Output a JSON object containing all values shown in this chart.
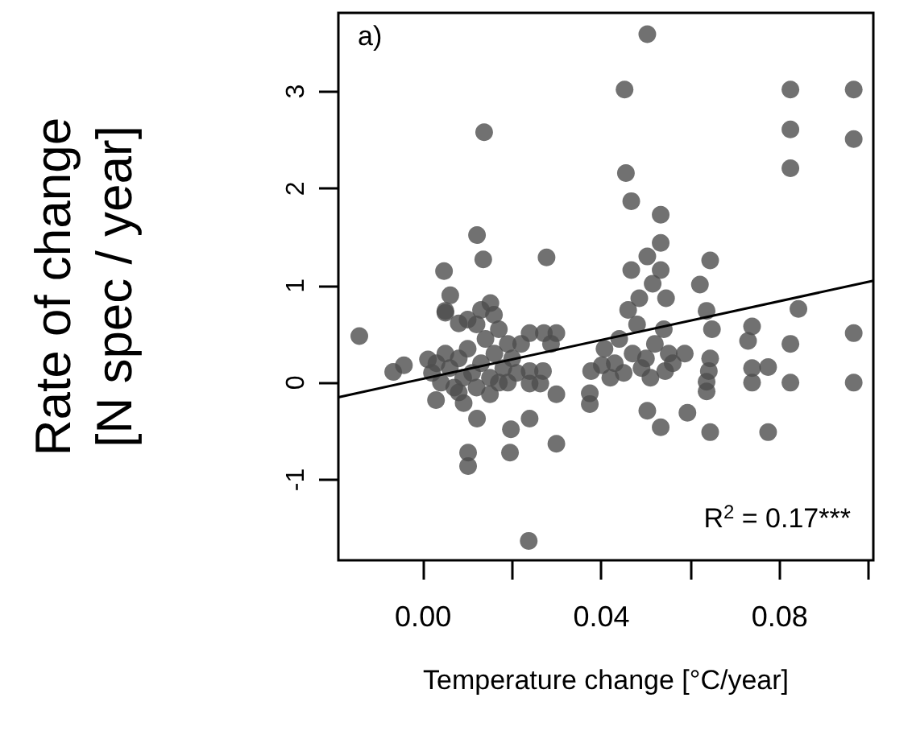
{
  "chart_data": {
    "type": "scatter",
    "xlabel": "Temperature change [°C/year]",
    "ylabel": "Rate of change\n[N spec / year]",
    "annotations": [
      "a)",
      "R$^{2}$ = 0.17***"
    ],
    "xlim": [
      -0.019,
      0.101
    ],
    "ylim": [
      -1.83,
      3.81
    ],
    "xticks": [
      {
        "value": 0,
        "label": "0.00"
      },
      {
        "value": 0.02,
        "label": null
      },
      {
        "value": 0.04,
        "label": "0.04"
      },
      {
        "value": 0.06,
        "label": null
      },
      {
        "value": 0.08,
        "label": "0.08"
      },
      {
        "value": 0.1,
        "label": null
      }
    ],
    "yticks": [
      -1,
      0,
      1,
      2,
      3
    ],
    "grid": false,
    "marker": "circle",
    "series": [
      {
        "color": "#4d4d4d",
        "x": [
          0.0137,
          0.0121,
          0.0135,
          0.0277,
          0.0047,
          0.0061,
          0.005,
          0.0503,
          0.0452,
          0.0824,
          0.0966,
          0.0824,
          0.0966,
          0.0824,
          0.0455,
          0.0467,
          0.0533,
          0.0533,
          0.0503,
          0.0644,
          0.0467,
          0.0533,
          0.0621,
          0.0515,
          0.0485,
          0.0545,
          0.0636,
          0.0842,
          0.0738,
          0.0648,
          0.0729,
          0.0824,
          0.0966,
          0.0774,
          0.0738,
          0.0644,
          0.0641,
          0.0636,
          0.0636,
          0.0738,
          0.0824,
          0.0966,
          0.0587,
          0.0551,
          0.0543,
          0.0503,
          0.0533,
          0.0593,
          0.0644,
          0.0774,
          0.043,
          0.045,
          0.047,
          0.049,
          0.051,
          0.052,
          0.048,
          0.046,
          0.044,
          0.05,
          0.042,
          0.054,
          0.056,
          -0.0143,
          0.005,
          0.008,
          0.0151,
          0.0159,
          0.0239,
          0.0271,
          0.0299,
          0.0287,
          -0.0067,
          -0.0043,
          0.0011,
          0.0029,
          0.0091,
          0.0121,
          0.0197,
          0.0239,
          0.0299,
          0.0299,
          0.0195,
          0.0101,
          0.0101,
          0.0237,
          0.0377,
          0.0374,
          0.0374,
          0.0239,
          0.0269,
          0.0239,
          0.0263,
          0.0407,
          0.0401,
          0.002,
          0.004,
          0.006,
          0.007,
          0.008,
          0.009,
          0.01,
          0.011,
          0.012,
          0.013,
          0.014,
          0.015,
          0.016,
          0.017,
          0.018,
          0.019,
          0.02,
          0.021,
          0.022,
          0.012,
          0.01,
          0.008,
          0.005,
          0.003,
          0.015,
          0.017,
          0.019,
          0.013
        ],
        "values": [
          2.58,
          1.52,
          1.27,
          1.29,
          1.15,
          0.9,
          0.74,
          3.59,
          3.02,
          3.02,
          3.02,
          2.61,
          2.51,
          2.21,
          2.16,
          1.87,
          1.73,
          1.44,
          1.3,
          1.26,
          1.16,
          1.16,
          1.01,
          1.02,
          0.87,
          0.87,
          0.74,
          0.76,
          0.58,
          0.55,
          0.43,
          0.4,
          0.51,
          0.16,
          0.15,
          0.25,
          0.12,
          0.01,
          -0.09,
          0,
          0,
          0,
          0.3,
          0.3,
          0.12,
          -0.29,
          -0.46,
          -0.31,
          -0.51,
          -0.51,
          0.2,
          0.1,
          0.3,
          0.15,
          0.05,
          0.4,
          0.6,
          0.75,
          0.45,
          0.25,
          0.05,
          0.55,
          0.2,
          0.48,
          0.72,
          0.61,
          0.82,
          0.7,
          0.51,
          0.51,
          0.51,
          0.4,
          0.11,
          0.18,
          0.24,
          -0.18,
          -0.21,
          -0.37,
          -0.48,
          -0.37,
          -0.12,
          -0.63,
          -0.72,
          -0.72,
          -0.86,
          -1.63,
          0.12,
          -0.11,
          -0.22,
          0.12,
          0.12,
          -0.01,
          -0.01,
          0.35,
          0.18,
          0.1,
          0,
          0.15,
          -0.05,
          0.25,
          0.05,
          0.35,
          0.1,
          -0.05,
          0.2,
          0.45,
          0.05,
          0.3,
          0.55,
          0.15,
          0,
          0.25,
          0.1,
          0.4,
          0.6,
          0.65,
          -0.1,
          0.3,
          0.2,
          -0.12,
          0,
          0.4,
          0.75
        ]
      },
      {
        "type": "line",
        "color": "#000000",
        "marker": "none",
        "line_style": "solid",
        "x": [
          -0.019,
          0.101
        ],
        "values": [
          -0.15,
          1.05
        ]
      }
    ]
  }
}
